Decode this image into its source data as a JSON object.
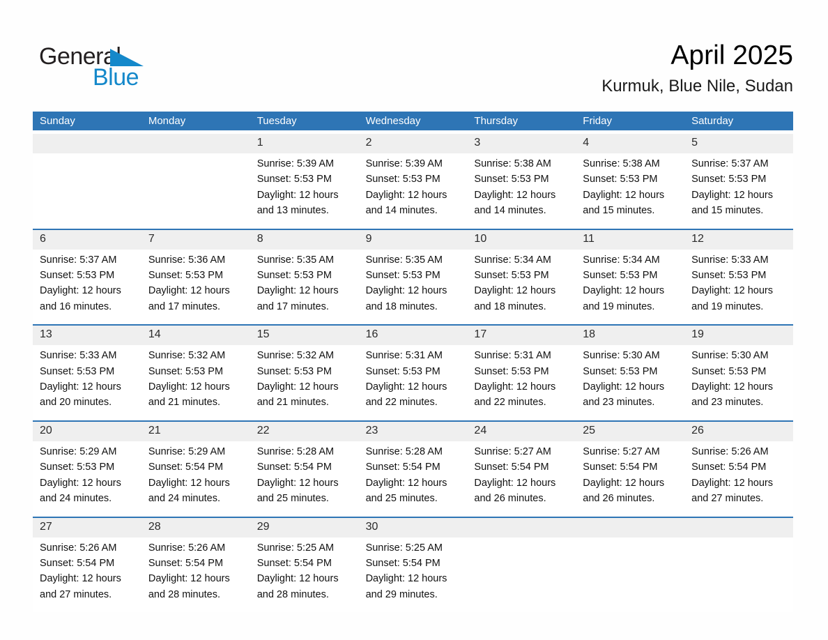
{
  "logo": {
    "word_top": "General",
    "word_bottom": "Blue"
  },
  "header": {
    "title": "April 2025",
    "location": "Kurmuk, Blue Nile, Sudan"
  },
  "colors": {
    "header_blue": "#2e75b5",
    "row_divider_blue": "#2e75b5",
    "day_strip_gray": "#efefef",
    "logo_blue": "#1488ca",
    "logo_black": "#231f20"
  },
  "weekdays": [
    "Sunday",
    "Monday",
    "Tuesday",
    "Wednesday",
    "Thursday",
    "Friday",
    "Saturday"
  ],
  "weeks": [
    [
      {
        "day": "",
        "lines": []
      },
      {
        "day": "",
        "lines": []
      },
      {
        "day": "1",
        "lines": [
          "Sunrise: 5:39 AM",
          "Sunset: 5:53 PM",
          "Daylight: 12 hours",
          "and 13 minutes."
        ]
      },
      {
        "day": "2",
        "lines": [
          "Sunrise: 5:39 AM",
          "Sunset: 5:53 PM",
          "Daylight: 12 hours",
          "and 14 minutes."
        ]
      },
      {
        "day": "3",
        "lines": [
          "Sunrise: 5:38 AM",
          "Sunset: 5:53 PM",
          "Daylight: 12 hours",
          "and 14 minutes."
        ]
      },
      {
        "day": "4",
        "lines": [
          "Sunrise: 5:38 AM",
          "Sunset: 5:53 PM",
          "Daylight: 12 hours",
          "and 15 minutes."
        ]
      },
      {
        "day": "5",
        "lines": [
          "Sunrise: 5:37 AM",
          "Sunset: 5:53 PM",
          "Daylight: 12 hours",
          "and 15 minutes."
        ]
      }
    ],
    [
      {
        "day": "6",
        "lines": [
          "Sunrise: 5:37 AM",
          "Sunset: 5:53 PM",
          "Daylight: 12 hours",
          "and 16 minutes."
        ]
      },
      {
        "day": "7",
        "lines": [
          "Sunrise: 5:36 AM",
          "Sunset: 5:53 PM",
          "Daylight: 12 hours",
          "and 17 minutes."
        ]
      },
      {
        "day": "8",
        "lines": [
          "Sunrise: 5:35 AM",
          "Sunset: 5:53 PM",
          "Daylight: 12 hours",
          "and 17 minutes."
        ]
      },
      {
        "day": "9",
        "lines": [
          "Sunrise: 5:35 AM",
          "Sunset: 5:53 PM",
          "Daylight: 12 hours",
          "and 18 minutes."
        ]
      },
      {
        "day": "10",
        "lines": [
          "Sunrise: 5:34 AM",
          "Sunset: 5:53 PM",
          "Daylight: 12 hours",
          "and 18 minutes."
        ]
      },
      {
        "day": "11",
        "lines": [
          "Sunrise: 5:34 AM",
          "Sunset: 5:53 PM",
          "Daylight: 12 hours",
          "and 19 minutes."
        ]
      },
      {
        "day": "12",
        "lines": [
          "Sunrise: 5:33 AM",
          "Sunset: 5:53 PM",
          "Daylight: 12 hours",
          "and 19 minutes."
        ]
      }
    ],
    [
      {
        "day": "13",
        "lines": [
          "Sunrise: 5:33 AM",
          "Sunset: 5:53 PM",
          "Daylight: 12 hours",
          "and 20 minutes."
        ]
      },
      {
        "day": "14",
        "lines": [
          "Sunrise: 5:32 AM",
          "Sunset: 5:53 PM",
          "Daylight: 12 hours",
          "and 21 minutes."
        ]
      },
      {
        "day": "15",
        "lines": [
          "Sunrise: 5:32 AM",
          "Sunset: 5:53 PM",
          "Daylight: 12 hours",
          "and 21 minutes."
        ]
      },
      {
        "day": "16",
        "lines": [
          "Sunrise: 5:31 AM",
          "Sunset: 5:53 PM",
          "Daylight: 12 hours",
          "and 22 minutes."
        ]
      },
      {
        "day": "17",
        "lines": [
          "Sunrise: 5:31 AM",
          "Sunset: 5:53 PM",
          "Daylight: 12 hours",
          "and 22 minutes."
        ]
      },
      {
        "day": "18",
        "lines": [
          "Sunrise: 5:30 AM",
          "Sunset: 5:53 PM",
          "Daylight: 12 hours",
          "and 23 minutes."
        ]
      },
      {
        "day": "19",
        "lines": [
          "Sunrise: 5:30 AM",
          "Sunset: 5:53 PM",
          "Daylight: 12 hours",
          "and 23 minutes."
        ]
      }
    ],
    [
      {
        "day": "20",
        "lines": [
          "Sunrise: 5:29 AM",
          "Sunset: 5:53 PM",
          "Daylight: 12 hours",
          "and 24 minutes."
        ]
      },
      {
        "day": "21",
        "lines": [
          "Sunrise: 5:29 AM",
          "Sunset: 5:54 PM",
          "Daylight: 12 hours",
          "and 24 minutes."
        ]
      },
      {
        "day": "22",
        "lines": [
          "Sunrise: 5:28 AM",
          "Sunset: 5:54 PM",
          "Daylight: 12 hours",
          "and 25 minutes."
        ]
      },
      {
        "day": "23",
        "lines": [
          "Sunrise: 5:28 AM",
          "Sunset: 5:54 PM",
          "Daylight: 12 hours",
          "and 25 minutes."
        ]
      },
      {
        "day": "24",
        "lines": [
          "Sunrise: 5:27 AM",
          "Sunset: 5:54 PM",
          "Daylight: 12 hours",
          "and 26 minutes."
        ]
      },
      {
        "day": "25",
        "lines": [
          "Sunrise: 5:27 AM",
          "Sunset: 5:54 PM",
          "Daylight: 12 hours",
          "and 26 minutes."
        ]
      },
      {
        "day": "26",
        "lines": [
          "Sunrise: 5:26 AM",
          "Sunset: 5:54 PM",
          "Daylight: 12 hours",
          "and 27 minutes."
        ]
      }
    ],
    [
      {
        "day": "27",
        "lines": [
          "Sunrise: 5:26 AM",
          "Sunset: 5:54 PM",
          "Daylight: 12 hours",
          "and 27 minutes."
        ]
      },
      {
        "day": "28",
        "lines": [
          "Sunrise: 5:26 AM",
          "Sunset: 5:54 PM",
          "Daylight: 12 hours",
          "and 28 minutes."
        ]
      },
      {
        "day": "29",
        "lines": [
          "Sunrise: 5:25 AM",
          "Sunset: 5:54 PM",
          "Daylight: 12 hours",
          "and 28 minutes."
        ]
      },
      {
        "day": "30",
        "lines": [
          "Sunrise: 5:25 AM",
          "Sunset: 5:54 PM",
          "Daylight: 12 hours",
          "and 29 minutes."
        ]
      },
      {
        "day": "",
        "lines": []
      },
      {
        "day": "",
        "lines": []
      },
      {
        "day": "",
        "lines": []
      }
    ]
  ]
}
